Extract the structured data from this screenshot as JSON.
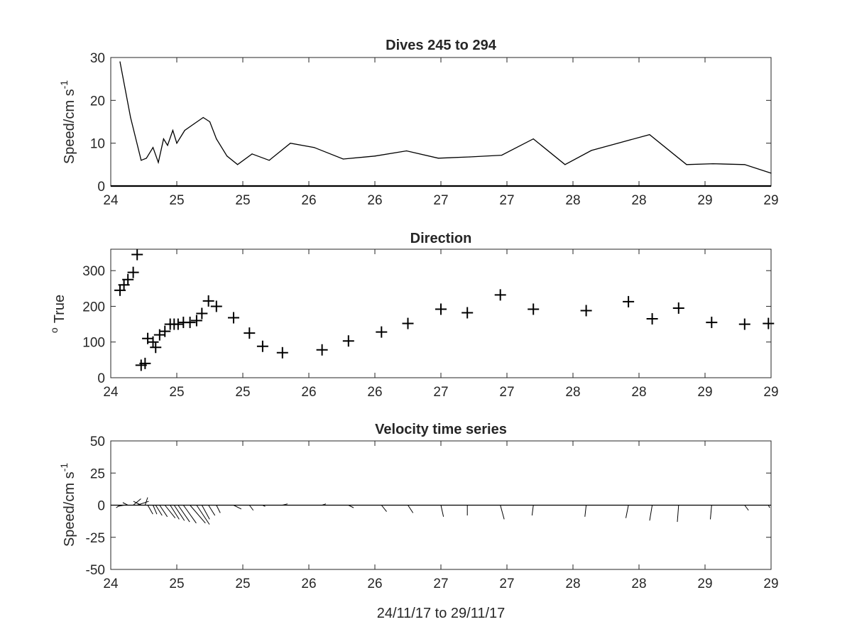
{
  "xlabel": "24/11/17 to 29/11/17",
  "chart_data": [
    {
      "type": "line",
      "title": "Dives 245 to 294",
      "ylabel": "Speed/cm s",
      "ylabel_sup": "-1",
      "ylim": [
        0,
        30
      ],
      "yticks": [
        0,
        10,
        20,
        30
      ],
      "xlim": [
        24.0,
        29.0
      ],
      "xticks": [
        24.0,
        24.5,
        25.0,
        25.5,
        26.0,
        26.5,
        27.0,
        27.5,
        28.0,
        28.5,
        29.0
      ],
      "xticklabels": [
        "24",
        "25",
        "25",
        "26",
        "26",
        "27",
        "27",
        "28",
        "28",
        "29",
        "29"
      ],
      "x": [
        24.07,
        24.15,
        24.23,
        24.27,
        24.32,
        24.36,
        24.4,
        24.43,
        24.47,
        24.5,
        24.56,
        24.63,
        24.7,
        24.75,
        24.8,
        24.88,
        24.96,
        25.07,
        25.2,
        25.36,
        25.54,
        25.76,
        26.0,
        26.24,
        26.48,
        26.72,
        26.96,
        27.2,
        27.44,
        27.64,
        27.84,
        28.08,
        28.36,
        28.56,
        28.8,
        29.0
      ],
      "y": [
        29,
        16,
        6,
        6.5,
        9,
        5.5,
        11,
        9.5,
        13,
        10,
        13,
        14.5,
        16,
        15,
        11,
        7,
        5,
        7.5,
        6,
        10,
        9,
        6.3,
        7,
        8.2,
        6.5,
        6.8,
        7.2,
        11,
        5,
        8.3,
        10,
        12,
        5,
        5.2,
        5,
        3
      ]
    },
    {
      "type": "scatter",
      "title": "Direction",
      "ylabel": "True",
      "ylabel_sup": "o",
      "ylim": [
        0,
        360
      ],
      "yticks": [
        0,
        100,
        200,
        300
      ],
      "xlim": [
        24.0,
        29.0
      ],
      "xticks": [
        24.0,
        24.5,
        25.0,
        25.5,
        26.0,
        26.5,
        27.0,
        27.5,
        28.0,
        28.5,
        29.0
      ],
      "xticklabels": [
        "24",
        "25",
        "25",
        "26",
        "26",
        "27",
        "27",
        "28",
        "28",
        "29",
        "29"
      ],
      "x": [
        24.07,
        24.1,
        24.13,
        24.17,
        24.2,
        24.23,
        24.26,
        24.28,
        24.32,
        24.34,
        24.37,
        24.41,
        24.45,
        24.48,
        24.51,
        24.55,
        24.6,
        24.65,
        24.69,
        24.74,
        24.8,
        24.93,
        25.05,
        25.15,
        25.3,
        25.6,
        25.8,
        26.05,
        26.25,
        26.5,
        26.7,
        26.95,
        27.2,
        27.6,
        27.92,
        28.1,
        28.3,
        28.55,
        28.8,
        28.98
      ],
      "y": [
        245,
        260,
        275,
        295,
        345,
        35,
        40,
        110,
        100,
        85,
        120,
        130,
        150,
        150,
        150,
        155,
        155,
        160,
        180,
        215,
        200,
        168,
        125,
        88,
        70,
        78,
        103,
        128,
        152,
        192,
        182,
        232,
        192,
        188,
        213,
        165,
        195,
        155,
        150,
        152
      ]
    },
    {
      "type": "quiver",
      "title": "Velocity time series",
      "ylabel": "Speed/cm s",
      "ylabel_sup": "-1",
      "ylim": [
        -50,
        50
      ],
      "yticks": [
        -50,
        -25,
        0,
        25,
        50
      ],
      "xlim": [
        24.0,
        29.0
      ],
      "xticks": [
        24.0,
        24.5,
        25.0,
        25.5,
        26.0,
        26.5,
        27.0,
        27.5,
        28.0,
        28.5,
        29.0
      ],
      "xticklabels": [
        "24",
        "25",
        "25",
        "26",
        "26",
        "27",
        "27",
        "28",
        "28",
        "29",
        "29"
      ],
      "x": [
        24.07,
        24.1,
        24.13,
        24.17,
        24.2,
        24.23,
        24.26,
        24.28,
        24.32,
        24.34,
        24.37,
        24.41,
        24.45,
        24.48,
        24.51,
        24.55,
        24.6,
        24.65,
        24.69,
        24.74,
        24.8,
        24.93,
        25.05,
        25.15,
        25.3,
        25.6,
        25.8,
        26.05,
        26.25,
        26.5,
        26.7,
        26.95,
        27.2,
        27.6,
        27.92,
        28.1,
        28.3,
        28.55,
        28.8,
        28.98
      ],
      "u": [
        -3,
        -5,
        -4,
        6,
        9,
        -6,
        2,
        4,
        3,
        5,
        6,
        8,
        7,
        8,
        9,
        10,
        12,
        10,
        6,
        5,
        3,
        6,
        3,
        2,
        4,
        3,
        4,
        4,
        4,
        2,
        0,
        3,
        -1,
        -1,
        -2,
        -2,
        -1,
        -1,
        3,
        1
      ],
      "v": [
        -2,
        -1,
        2,
        5,
        3,
        3,
        6,
        -7,
        -7,
        -8,
        -9,
        -10,
        -11,
        -12,
        -13,
        -14,
        -14,
        -15,
        -11,
        -8,
        -6,
        -3,
        -4,
        -1,
        1,
        1,
        -2,
        -5,
        -6,
        -9,
        -8,
        -11,
        -8,
        -9,
        -10,
        -12,
        -13,
        -11,
        -4,
        -2
      ]
    }
  ]
}
